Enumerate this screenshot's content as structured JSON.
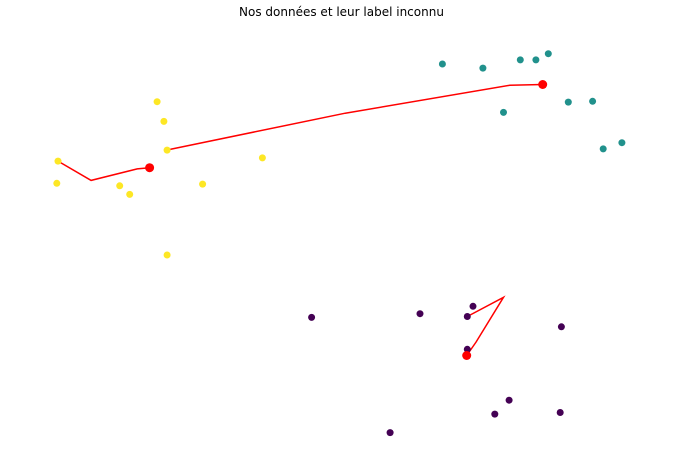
{
  "chart_data": {
    "type": "scatter",
    "title": "Nos données et leur label inconnu",
    "xlabel": "",
    "ylabel": "",
    "axes_visible": false,
    "grid": false,
    "xlim": [
      0,
      100
    ],
    "ylim": [
      0,
      100
    ],
    "colors": {
      "cluster_yellow": "#fde725",
      "cluster_teal": "#21918c",
      "cluster_purple": "#440154",
      "centroid": "#ff0000",
      "trajectory": "#ff0000"
    },
    "series": [
      {
        "color_key": "cluster_yellow",
        "points": [
          [
            4.5,
            68.5
          ],
          [
            4.3,
            63.1
          ],
          [
            20.4,
            83.0
          ],
          [
            21.5,
            78.2
          ],
          [
            22.0,
            71.2
          ],
          [
            37.3,
            69.3
          ],
          [
            14.4,
            62.5
          ],
          [
            16.0,
            60.4
          ],
          [
            27.7,
            62.9
          ],
          [
            22.0,
            45.6
          ]
        ]
      },
      {
        "color_key": "cluster_teal",
        "points": [
          [
            66.2,
            92.2
          ],
          [
            72.7,
            91.2
          ],
          [
            78.7,
            93.2
          ],
          [
            81.2,
            93.2
          ],
          [
            83.2,
            94.7
          ],
          [
            76.0,
            80.4
          ],
          [
            86.4,
            82.9
          ],
          [
            90.3,
            83.1
          ],
          [
            95.0,
            73.0
          ],
          [
            92.0,
            71.5
          ]
        ]
      },
      {
        "color_key": "cluster_purple",
        "points": [
          [
            45.2,
            30.4
          ],
          [
            62.6,
            31.3
          ],
          [
            70.2,
            30.6
          ],
          [
            71.1,
            33.1
          ],
          [
            70.2,
            22.6
          ],
          [
            85.3,
            28.1
          ],
          [
            76.9,
            10.2
          ],
          [
            74.6,
            6.8
          ],
          [
            85.1,
            7.2
          ],
          [
            57.8,
            2.3
          ]
        ]
      }
    ],
    "centroids": [
      [
        19.2,
        66.9
      ],
      [
        82.3,
        87.2
      ],
      [
        70.1,
        21.1
      ]
    ],
    "trajectories": [
      [
        [
          4.5,
          68.5
        ],
        [
          9.8,
          63.8
        ],
        [
          17.2,
          66.6
        ],
        [
          19.2,
          66.9
        ]
      ],
      [
        [
          21.9,
          71.2
        ],
        [
          50.6,
          80.2
        ],
        [
          77.0,
          87.0
        ],
        [
          82.3,
          87.2
        ]
      ],
      [
        [
          70.1,
          21.1
        ],
        [
          71.6,
          24.4
        ],
        [
          76.0,
          35.3
        ],
        [
          70.2,
          30.6
        ]
      ]
    ]
  }
}
